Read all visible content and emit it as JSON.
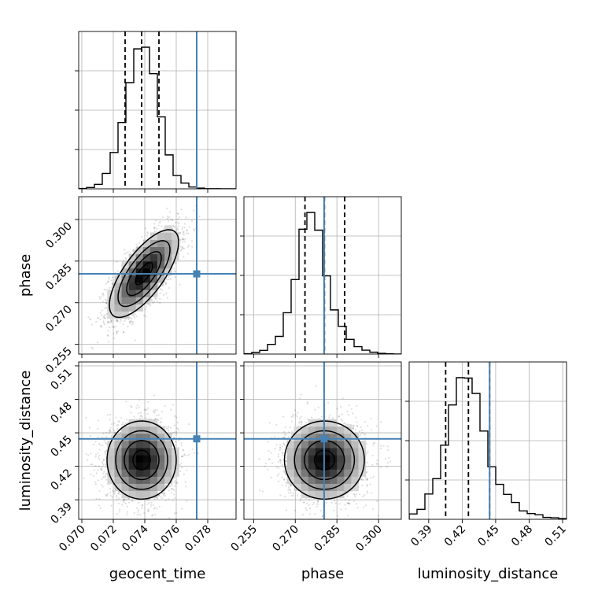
{
  "chart_data": {
    "type": "corner",
    "parameters": [
      "geocent_time",
      "phase",
      "luminosity_distance"
    ],
    "truths": {
      "geocent_time": 0.0773,
      "phase": 0.2804,
      "luminosity_distance": 0.4446
    },
    "truth_color": "#4682b4",
    "quantiles": {
      "geocent_time": [
        0.07275,
        0.0738,
        0.0749
      ],
      "phase": [
        0.2735,
        0.2805,
        0.2878
      ],
      "luminosity_distance": [
        0.4052,
        0.4256,
        0.4446
      ]
    },
    "ranges": {
      "geocent_time": [
        0.0698,
        0.0798
      ],
      "phase": [
        0.2515,
        0.3082
      ],
      "luminosity_distance": [
        0.3725,
        0.5135
      ]
    },
    "ticks": {
      "geocent_time": [
        0.07,
        0.072,
        0.074,
        0.076,
        0.078
      ],
      "phase": [
        0.255,
        0.27,
        0.285,
        0.3
      ],
      "luminosity_distance": [
        0.39,
        0.42,
        0.45,
        0.48,
        0.51
      ]
    },
    "tick_labels": {
      "geocent_time": [
        "0.070",
        "0.072",
        "0.074",
        "0.076",
        "0.078"
      ],
      "phase": [
        "0.255",
        "0.270",
        "0.285",
        "0.300"
      ],
      "luminosity_distance": [
        "0.39",
        "0.42",
        "0.45",
        "0.48",
        "0.51"
      ]
    },
    "axis_labels": {
      "geocent_time": "geocent_time",
      "phase": "phase",
      "luminosity_distance": "luminosity_distance"
    },
    "histograms": {
      "geocent_time": {
        "bin_start": 0.0698,
        "bin_width": 0.0005,
        "counts": [
          2,
          7,
          24,
          83,
          196,
          358,
          573,
          755,
          764,
          621,
          388,
          183,
          72,
          31,
          10,
          4,
          1,
          1,
          0,
          0
        ]
      },
      "phase": {
        "bin_start": 0.2515,
        "bin_width": 0.002835,
        "counts": [
          2,
          9,
          20,
          52,
          95,
          222,
          400,
          670,
          760,
          665,
          420,
          237,
          149,
          79,
          40,
          21,
          10,
          4,
          2,
          0
        ]
      },
      "luminosity_distance": {
        "bin_start": 0.3725,
        "bin_width": 0.00705,
        "counts": [
          14,
          26,
          66,
          106,
          193,
          298,
          369,
          368,
          328,
          230,
          137,
          91,
          65,
          44,
          22,
          15,
          12,
          5,
          4,
          2
        ]
      }
    },
    "joint_stats": {
      "phase_vs_geocent_time": {
        "center": [
          0.07395,
          0.2805
        ],
        "sd": [
          0.0011,
          0.0079
        ],
        "rho": 0.72
      },
      "luminosity_distance_vs_geocent_time": {
        "center": [
          0.0738,
          0.4256
        ],
        "sd": [
          0.0011,
          0.0175
        ],
        "rho": 0.0
      },
      "luminosity_distance_vs_phase": {
        "center": [
          0.2805,
          0.4256
        ],
        "sd": [
          0.0072,
          0.0175
        ],
        "rho": 0.0
      }
    },
    "grid": true
  }
}
